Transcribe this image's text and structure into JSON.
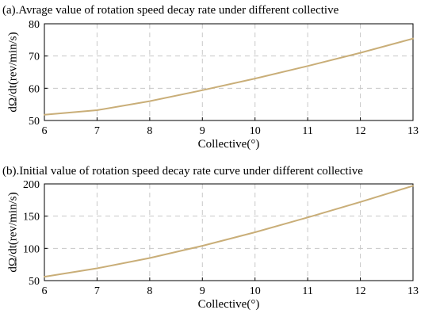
{
  "chart_data": [
    {
      "type": "line",
      "title": "(a).Avrage value of rotation speed decay rate under different collective",
      "xlabel": "Collective(°)",
      "ylabel": "dΩ/dt(rev/min/s)",
      "xlim": [
        6,
        13
      ],
      "ylim": [
        50,
        80
      ],
      "xticks": [
        6,
        7,
        8,
        9,
        10,
        11,
        12,
        13
      ],
      "yticks": [
        50,
        60,
        70,
        80
      ],
      "grid": true,
      "series": [
        {
          "color": "#c9ae78",
          "x": [
            6,
            7,
            8,
            9,
            10,
            11,
            12,
            13
          ],
          "values": [
            51.8,
            53.2,
            56.0,
            59.4,
            63.0,
            66.9,
            71.0,
            75.4
          ]
        }
      ]
    },
    {
      "type": "line",
      "title": "(b).Initial value of rotation speed decay rate curve under different collective",
      "xlabel": "Collective(°)",
      "ylabel": "dΩ/dt(rev/min/s)",
      "xlim": [
        6,
        13
      ],
      "ylim": [
        50,
        200
      ],
      "xticks": [
        6,
        7,
        8,
        9,
        10,
        11,
        12,
        13
      ],
      "yticks": [
        50,
        100,
        150,
        200
      ],
      "grid": true,
      "series": [
        {
          "color": "#c9ae78",
          "x": [
            6,
            7,
            8,
            9,
            10,
            11,
            12,
            13
          ],
          "values": [
            56,
            69,
            85,
            104,
            125,
            148,
            172,
            197
          ]
        }
      ]
    }
  ]
}
